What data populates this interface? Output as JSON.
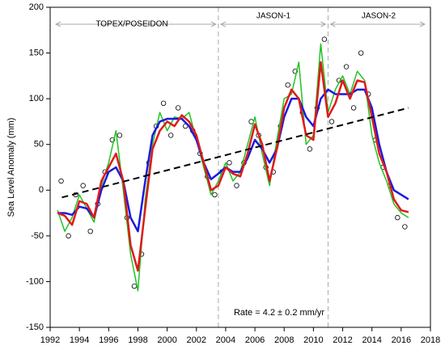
{
  "chart_data": {
    "type": "line",
    "y_label": "Sea Level Anomaly (mm)",
    "annotations": [
      "TOPEX/POSEIDON",
      "JASON-1",
      "JASON-2",
      "Rate = 4.2 ± 0.2 mm/yr"
    ],
    "mission_boundaries": [
      2003.5,
      2011
    ],
    "xlim": [
      1992,
      2018
    ],
    "xticks": [
      1992,
      1994,
      1996,
      1998,
      2000,
      2002,
      2004,
      2006,
      2008,
      2010,
      2012,
      2014,
      2016,
      2018
    ],
    "ylim": [
      -150,
      200
    ],
    "yticks": [
      -150,
      -100,
      -50,
      0,
      50,
      100,
      150,
      200
    ],
    "x": [
      1992.5,
      1993,
      1993.5,
      1994,
      1994.5,
      1995,
      1995.5,
      1996,
      1996.5,
      1997,
      1997.5,
      1998,
      1998.5,
      1999,
      1999.5,
      2000,
      2000.5,
      2001,
      2001.5,
      2002,
      2002.5,
      2003,
      2003.5,
      2004,
      2004.5,
      2005,
      2005.5,
      2006,
      2006.5,
      2007,
      2007.5,
      2008,
      2008.5,
      2009,
      2009.5,
      2010,
      2010.5,
      2011,
      2011.5,
      2012,
      2012.5,
      2013,
      2013.5,
      2014,
      2014.5,
      2015,
      2015.5,
      2016,
      2016.5
    ],
    "series": [
      {
        "style": "markers",
        "color": "#000000",
        "x": [
          1992.75,
          1993.25,
          1993.75,
          1994.25,
          1994.75,
          1995.25,
          1995.75,
          1996.25,
          1996.75,
          1997.25,
          1997.75,
          1998.25,
          1998.75,
          1999.25,
          1999.75,
          2000.25,
          2000.75,
          2001.25,
          2001.75,
          2002.25,
          2002.75,
          2003.25,
          2003.75,
          2004.25,
          2004.75,
          2005.25,
          2005.75,
          2006.25,
          2006.75,
          2007.25,
          2007.75,
          2008.25,
          2008.75,
          2009.25,
          2009.75,
          2010.25,
          2010.75,
          2011.25,
          2011.75,
          2012.25,
          2012.75,
          2013.25,
          2013.75,
          2014.25,
          2014.75,
          2015.25,
          2015.75,
          2016.25
        ],
        "values": [
          10,
          -50,
          -5,
          5,
          -45,
          -15,
          20,
          55,
          60,
          -30,
          -105,
          -70,
          30,
          70,
          95,
          60,
          90,
          70,
          65,
          40,
          15,
          -5,
          20,
          30,
          5,
          30,
          75,
          60,
          25,
          20,
          70,
          115,
          130,
          85,
          45,
          90,
          165,
          75,
          120,
          135,
          90,
          150,
          105,
          55,
          25,
          5,
          -30,
          -40
        ]
      },
      {
        "style": "line",
        "color": "#22c322",
        "width": 1.5,
        "values": [
          -22,
          -45,
          -30,
          -5,
          -20,
          -35,
          5,
          30,
          65,
          0,
          -70,
          -110,
          -10,
          50,
          85,
          65,
          80,
          78,
          85,
          55,
          25,
          -5,
          10,
          30,
          10,
          20,
          50,
          80,
          40,
          5,
          55,
          100,
          105,
          140,
          50,
          60,
          160,
          85,
          110,
          125,
          105,
          130,
          120,
          60,
          30,
          10,
          -15,
          -25,
          -30
        ]
      },
      {
        "style": "line",
        "color": "#1a1adc",
        "width": 2.5,
        "values": [
          -25,
          -25,
          -27,
          -18,
          -20,
          -30,
          0,
          20,
          25,
          10,
          -30,
          -45,
          10,
          60,
          75,
          78,
          78,
          78,
          70,
          55,
          30,
          12,
          18,
          25,
          20,
          20,
          35,
          55,
          45,
          30,
          45,
          80,
          100,
          100,
          80,
          70,
          100,
          110,
          105,
          105,
          105,
          110,
          110,
          90,
          50,
          20,
          0,
          -5,
          -10
        ]
      },
      {
        "style": "line",
        "color": "#e01a1a",
        "width": 2.5,
        "values": [
          -25,
          -28,
          -38,
          -12,
          -15,
          -30,
          10,
          25,
          40,
          10,
          -60,
          -88,
          -20,
          45,
          65,
          75,
          70,
          82,
          75,
          60,
          30,
          0,
          5,
          25,
          18,
          15,
          40,
          72,
          50,
          10,
          45,
          90,
          110,
          100,
          60,
          55,
          140,
          80,
          95,
          120,
          100,
          120,
          118,
          80,
          40,
          20,
          -10,
          -22,
          -24
        ]
      },
      {
        "style": "dashed",
        "color": "#000000",
        "width": 2,
        "x": [
          1992.8,
          2016.5
        ],
        "values": [
          -8,
          90
        ]
      }
    ]
  }
}
